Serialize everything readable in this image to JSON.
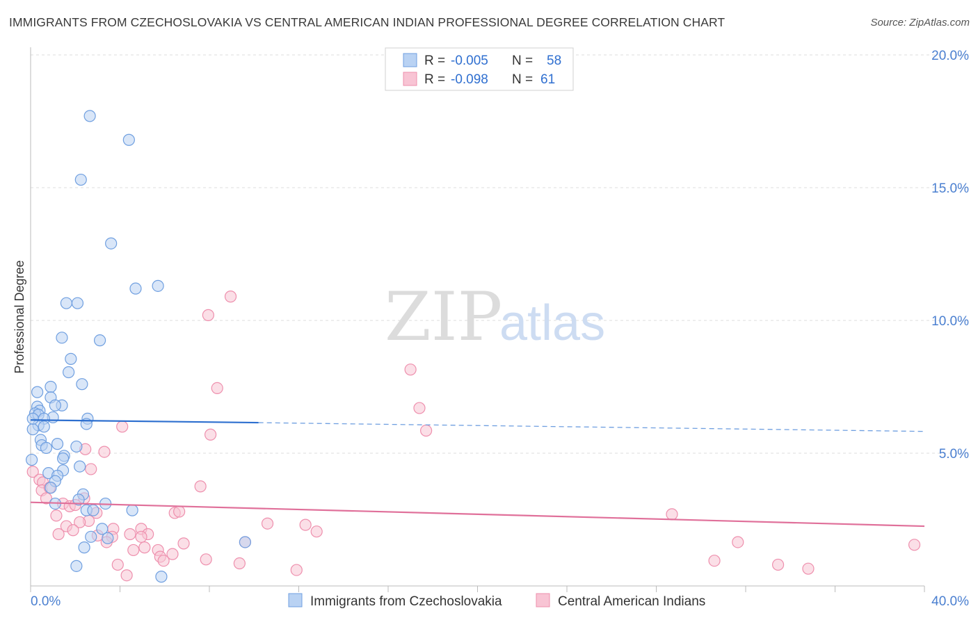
{
  "title": "IMMIGRANTS FROM CZECHOSLOVAKIA VS CENTRAL AMERICAN INDIAN PROFESSIONAL DEGREE CORRELATION CHART",
  "source": "Source: ZipAtlas.com",
  "watermark": {
    "zip": "ZIP",
    "atlas": "atlas"
  },
  "colors": {
    "blue_fill": "#b9d2f3",
    "blue_stroke": "#6f9fe0",
    "blue_line": "#2d6fcf",
    "pink_fill": "#f8c4d4",
    "pink_stroke": "#ee8fad",
    "pink_line": "#e0709a",
    "tick_text": "#4a7fd0",
    "grid": "#dddddd"
  },
  "legend": {
    "rows": [
      {
        "r_label": "R =",
        "r_value": "-0.005",
        "n_label": "N =",
        "n_value": "58"
      },
      {
        "r_label": "R =",
        "r_value": "-0.098",
        "n_label": "N =",
        "n_value": "61"
      }
    ]
  },
  "chart_data": {
    "type": "scatter",
    "ylabel": "Professional Degree",
    "xlim": [
      0,
      40
    ],
    "ylim": [
      0,
      20
    ],
    "x_tick_labels": [
      "0.0%",
      "40.0%"
    ],
    "y_ticks": [
      {
        "value": 5,
        "label": "5.0%"
      },
      {
        "value": 10,
        "label": "10.0%"
      },
      {
        "value": 15,
        "label": "15.0%"
      },
      {
        "value": 20,
        "label": "20.0%"
      }
    ],
    "series": [
      {
        "name": "Immigrants from Czechoslovakia",
        "color": "blue",
        "trend": {
          "x0": 0,
          "y0": 6.25,
          "x1": 10.2,
          "y1": 6.15,
          "x_dash_end": 40,
          "y_dash_end": 5.82
        },
        "points": [
          [
            2.65,
            17.7
          ],
          [
            4.4,
            16.8
          ],
          [
            2.25,
            15.3
          ],
          [
            3.6,
            12.9
          ],
          [
            4.7,
            11.2
          ],
          [
            5.7,
            11.3
          ],
          [
            1.6,
            10.65
          ],
          [
            2.1,
            10.65
          ],
          [
            1.4,
            9.35
          ],
          [
            3.1,
            9.25
          ],
          [
            1.8,
            8.55
          ],
          [
            1.7,
            8.05
          ],
          [
            2.3,
            7.6
          ],
          [
            0.9,
            7.5
          ],
          [
            0.3,
            7.3
          ],
          [
            0.9,
            7.1
          ],
          [
            0.3,
            6.75
          ],
          [
            1.4,
            6.8
          ],
          [
            1.1,
            6.8
          ],
          [
            0.4,
            6.6
          ],
          [
            0.2,
            6.5
          ],
          [
            0.35,
            6.45
          ],
          [
            1.0,
            6.35
          ],
          [
            0.6,
            6.3
          ],
          [
            2.55,
            6.3
          ],
          [
            0.35,
            6.05
          ],
          [
            0.6,
            6.0
          ],
          [
            2.5,
            6.1
          ],
          [
            0.1,
            5.9
          ],
          [
            0.45,
            5.5
          ],
          [
            1.2,
            5.35
          ],
          [
            0.5,
            5.3
          ],
          [
            0.7,
            5.2
          ],
          [
            2.05,
            5.25
          ],
          [
            1.5,
            4.9
          ],
          [
            1.45,
            4.8
          ],
          [
            0.05,
            4.75
          ],
          [
            2.2,
            4.5
          ],
          [
            1.45,
            4.35
          ],
          [
            0.8,
            4.25
          ],
          [
            1.2,
            4.15
          ],
          [
            1.1,
            3.95
          ],
          [
            0.9,
            3.7
          ],
          [
            2.35,
            3.45
          ],
          [
            2.15,
            3.25
          ],
          [
            1.1,
            3.1
          ],
          [
            3.35,
            3.1
          ],
          [
            2.5,
            2.85
          ],
          [
            2.8,
            2.85
          ],
          [
            4.55,
            2.85
          ],
          [
            3.2,
            2.15
          ],
          [
            2.7,
            1.85
          ],
          [
            3.45,
            1.8
          ],
          [
            9.6,
            1.65
          ],
          [
            2.4,
            1.45
          ],
          [
            2.05,
            0.75
          ],
          [
            5.85,
            0.35
          ],
          [
            0.1,
            6.3
          ]
        ]
      },
      {
        "name": "Central American Indians",
        "color": "pink",
        "trend": {
          "x0": 0,
          "y0": 3.15,
          "x1": 40,
          "y1": 2.25
        },
        "points": [
          [
            8.95,
            10.9
          ],
          [
            7.95,
            10.2
          ],
          [
            17.0,
            8.15
          ],
          [
            8.35,
            7.45
          ],
          [
            17.4,
            6.7
          ],
          [
            4.1,
            6.0
          ],
          [
            17.7,
            5.85
          ],
          [
            8.05,
            5.7
          ],
          [
            3.3,
            5.05
          ],
          [
            2.45,
            5.15
          ],
          [
            2.7,
            4.4
          ],
          [
            0.1,
            4.3
          ],
          [
            0.4,
            4.0
          ],
          [
            0.55,
            3.9
          ],
          [
            7.6,
            3.75
          ],
          [
            0.5,
            3.6
          ],
          [
            0.85,
            3.7
          ],
          [
            0.7,
            3.3
          ],
          [
            2.4,
            3.3
          ],
          [
            1.45,
            3.1
          ],
          [
            1.75,
            3.0
          ],
          [
            2.0,
            3.05
          ],
          [
            2.95,
            2.75
          ],
          [
            6.45,
            2.75
          ],
          [
            6.65,
            2.8
          ],
          [
            1.15,
            2.65
          ],
          [
            28.7,
            2.7
          ],
          [
            2.6,
            2.45
          ],
          [
            2.2,
            2.4
          ],
          [
            1.6,
            2.25
          ],
          [
            10.6,
            2.35
          ],
          [
            12.3,
            2.3
          ],
          [
            3.7,
            2.15
          ],
          [
            4.95,
            2.15
          ],
          [
            1.9,
            2.1
          ],
          [
            12.8,
            2.05
          ],
          [
            4.45,
            1.95
          ],
          [
            1.25,
            1.95
          ],
          [
            3.0,
            1.9
          ],
          [
            5.25,
            1.95
          ],
          [
            4.95,
            1.85
          ],
          [
            3.65,
            1.85
          ],
          [
            3.4,
            1.65
          ],
          [
            6.85,
            1.6
          ],
          [
            9.6,
            1.65
          ],
          [
            31.65,
            1.65
          ],
          [
            39.55,
            1.55
          ],
          [
            5.1,
            1.45
          ],
          [
            4.6,
            1.35
          ],
          [
            5.7,
            1.35
          ],
          [
            6.35,
            1.2
          ],
          [
            5.8,
            1.1
          ],
          [
            5.95,
            0.95
          ],
          [
            7.85,
            1.0
          ],
          [
            3.9,
            0.8
          ],
          [
            30.6,
            0.95
          ],
          [
            9.35,
            0.85
          ],
          [
            33.45,
            0.8
          ],
          [
            11.9,
            0.6
          ],
          [
            34.8,
            0.65
          ],
          [
            4.3,
            0.4
          ]
        ]
      }
    ]
  }
}
